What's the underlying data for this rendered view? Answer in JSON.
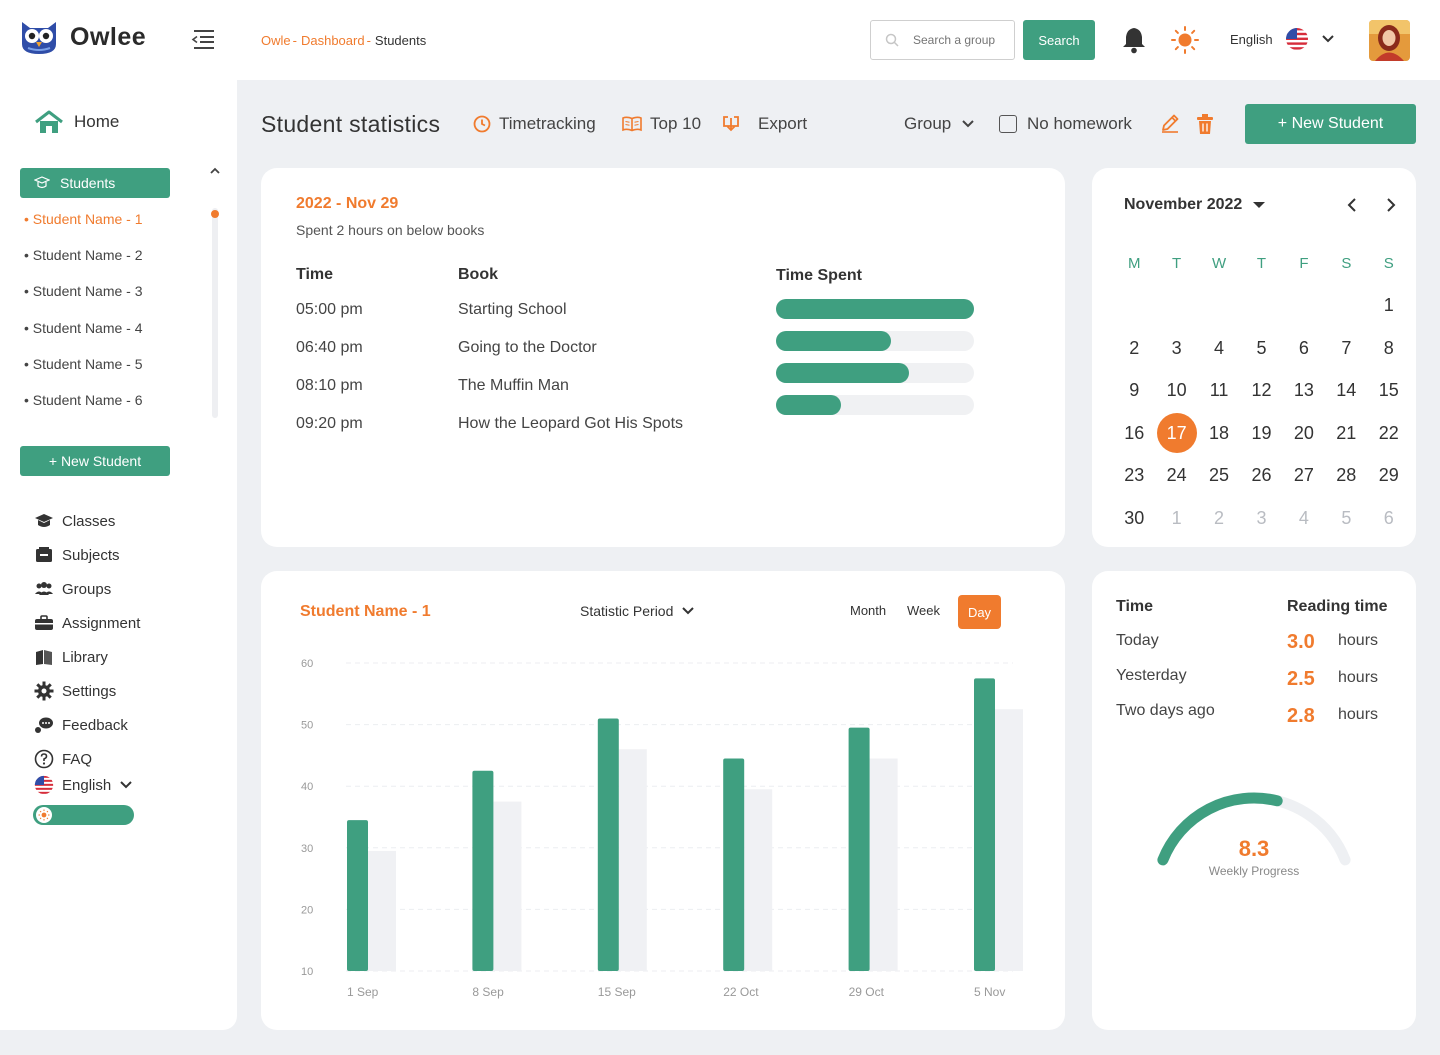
{
  "app": {
    "name": "Owlee"
  },
  "breadcrumb": {
    "items": [
      "Owle",
      "Dashboard"
    ],
    "current": "Students"
  },
  "topbar": {
    "search_placeholder": "Search a group",
    "search_button": "Search",
    "language": "English"
  },
  "sidebar": {
    "home": "Home",
    "students_label": "Students",
    "students": [
      "Student Name - 1",
      "Student Name - 2",
      "Student Name - 3",
      "Student Name - 4",
      "Student Name - 5",
      "Student Name - 6"
    ],
    "new_student": "+ New Student",
    "nav": [
      {
        "label": "Classes",
        "icon": "graduation-cap-icon"
      },
      {
        "label": "Subjects",
        "icon": "subjects-icon"
      },
      {
        "label": "Groups",
        "icon": "groups-icon"
      },
      {
        "label": "Assignment",
        "icon": "briefcase-icon"
      },
      {
        "label": "Library",
        "icon": "library-icon"
      },
      {
        "label": "Settings",
        "icon": "gear-icon"
      },
      {
        "label": "Feedback",
        "icon": "feedback-icon"
      },
      {
        "label": "FAQ",
        "icon": "question-icon"
      }
    ],
    "language": "English"
  },
  "header": {
    "title": "Student statistics",
    "timetracking": "Timetracking",
    "top10": "Top 10",
    "export": "Export",
    "group": "Group",
    "no_homework": "No homework",
    "new_student": "+ New Student"
  },
  "log": {
    "date": "2022 - Nov 29",
    "subtitle": "Spent 2 hours on below books",
    "col_time": "Time",
    "col_book": "Book",
    "col_spent": "Time Spent",
    "rows": [
      {
        "time": "05:00 pm",
        "book": "Starting School",
        "progress": 1.0
      },
      {
        "time": "06:40 pm",
        "book": "Going to the Doctor",
        "progress": 0.58
      },
      {
        "time": "08:10 pm",
        "book": "The Muffin Man",
        "progress": 0.67
      },
      {
        "time": "09:20 pm",
        "book": "How the Leopard Got His Spots",
        "progress": 0.33
      }
    ]
  },
  "calendar": {
    "month": "November 2022",
    "weekdays": [
      "M",
      "T",
      "W",
      "T",
      "F",
      "S",
      "S"
    ],
    "weeks": [
      [
        "",
        "",
        "",
        "",
        "",
        "",
        "1"
      ],
      [
        "2",
        "3",
        "4",
        "5",
        "6",
        "7",
        "8"
      ],
      [
        "9",
        "10",
        "11",
        "12",
        "13",
        "14",
        "15"
      ],
      [
        "16",
        "17",
        "18",
        "19",
        "20",
        "21",
        "22"
      ],
      [
        "23",
        "24",
        "25",
        "26",
        "27",
        "28",
        "29"
      ],
      [
        "30",
        "1",
        "2",
        "3",
        "4",
        "5",
        "6"
      ]
    ],
    "selected": "17",
    "next_month_days_from_index": 1
  },
  "stats": {
    "student": "Student Name - 1",
    "period_label": "Statistic Period",
    "modes": [
      "Month",
      "Week",
      "Day"
    ],
    "active_mode": "Day"
  },
  "chart_data": {
    "type": "bar",
    "categories": [
      "1 Sep",
      "8 Sep",
      "15 Sep",
      "22 Oct",
      "29 Oct",
      "5 Nov"
    ],
    "series": [
      {
        "values": [
          34.5,
          42.5,
          51,
          44.5,
          49.5,
          57.5
        ],
        "color": "#3f9f80"
      },
      {
        "values": [
          29.5,
          37.5,
          46,
          39.5,
          44.5,
          52.5
        ],
        "color": "#f0f1f4"
      }
    ],
    "yticks": [
      60,
      50,
      40,
      30,
      20,
      10
    ],
    "ylim": [
      10,
      60
    ],
    "grid": true
  },
  "reading": {
    "col_time": "Time",
    "col_reading": "Reading time",
    "rows": [
      {
        "label": "Today",
        "value": "3.0",
        "unit": "hours"
      },
      {
        "label": "Yesterday",
        "value": "2.5",
        "unit": "hours"
      },
      {
        "label": "Two days ago",
        "value": "2.8",
        "unit": "hours"
      }
    ],
    "weekly_value": "8.3",
    "weekly_label": "Weekly Progress",
    "weekly_fraction": 0.6
  },
  "colors": {
    "accent": "#3f9f80",
    "highlight": "#f07b2e"
  }
}
